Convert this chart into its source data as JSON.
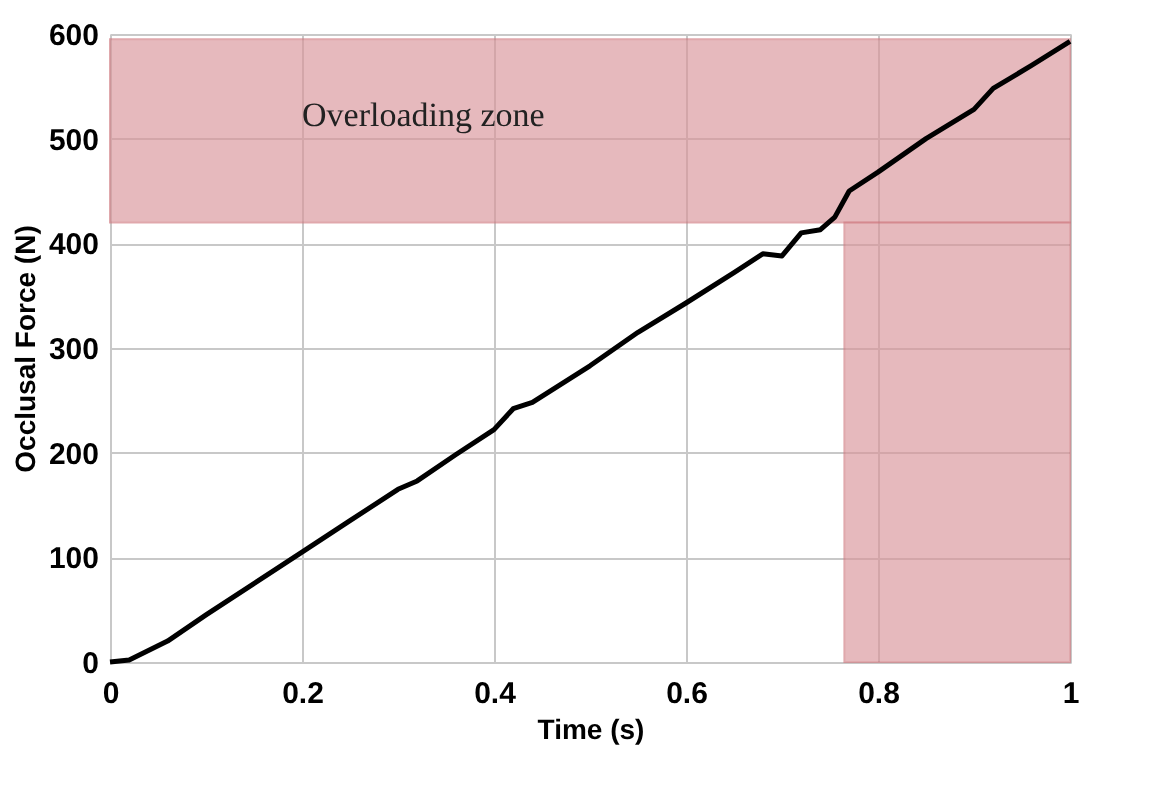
{
  "chart_data": {
    "type": "line",
    "xlabel": "Time (s)",
    "ylabel": "Occlusal Force (N)",
    "x": [
      0,
      0.02,
      0.06,
      0.1,
      0.2,
      0.25,
      0.3,
      0.32,
      0.36,
      0.4,
      0.42,
      0.44,
      0.5,
      0.55,
      0.6,
      0.65,
      0.68,
      0.7,
      0.72,
      0.74,
      0.755,
      0.77,
      0.8,
      0.85,
      0.9,
      0.92,
      0.96,
      1.0
    ],
    "series": [
      {
        "color": "#000000",
        "values": [
          0,
          2,
          20,
          45,
          105,
          135,
          165,
          173,
          198,
          222,
          242,
          248,
          283,
          315,
          343,
          372,
          390,
          388,
          410,
          413,
          425,
          450,
          468,
          500,
          528,
          548,
          570,
          593
        ]
      }
    ],
    "xlim": [
      0,
      1
    ],
    "xticks": [
      0,
      0.2,
      0.4,
      0.6,
      0.8,
      1
    ],
    "ylim": [
      0,
      600
    ],
    "yticks": [
      0,
      100,
      200,
      300,
      400,
      500,
      600
    ],
    "bands": [
      {
        "axis": "y",
        "from": 420,
        "to": 595,
        "label": "Overloading zone",
        "color": "#d9959a"
      },
      {
        "axis": "x",
        "from": 0.765,
        "to": 1.0,
        "label": null,
        "color": "#d9959a"
      }
    ],
    "grid": true,
    "marker": "none",
    "line_style": "solid"
  }
}
